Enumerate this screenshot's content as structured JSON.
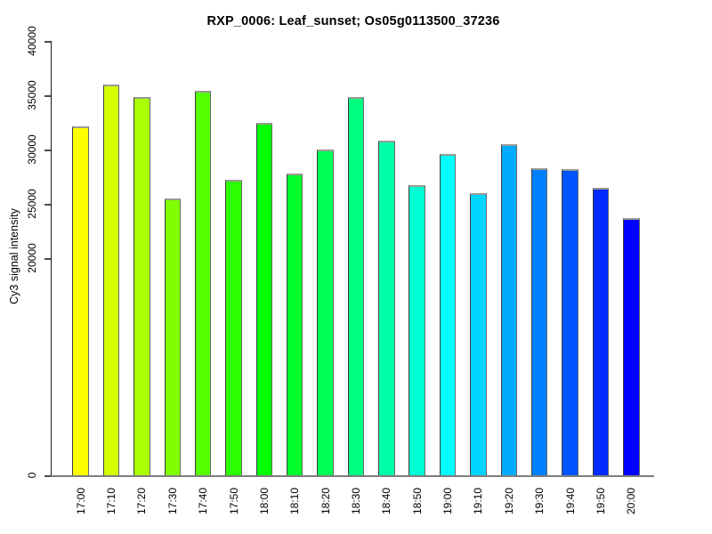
{
  "chart_data": {
    "type": "bar",
    "title": "RXP_0006: Leaf_sunset; Os05g0113500_37236",
    "xlabel": "",
    "ylabel": "Cy3 signal intensity",
    "categories": [
      "17:00",
      "17:10",
      "17:20",
      "17:30",
      "17:40",
      "17:50",
      "18:00",
      "18:10",
      "18:20",
      "18:30",
      "18:40",
      "18:50",
      "19:00",
      "19:10",
      "19:20",
      "19:30",
      "19:40",
      "19:50",
      "20:00"
    ],
    "values": [
      32100,
      36000,
      34800,
      25500,
      35400,
      27200,
      32500,
      27800,
      30000,
      34800,
      30800,
      26700,
      29600,
      26000,
      30500,
      28300,
      28200,
      26500,
      23700
    ],
    "bar_colors": [
      "#FFFF00",
      "#D4FF00",
      "#AAFF00",
      "#80FF00",
      "#55FF00",
      "#2BFF00",
      "#00FF00",
      "#00FF2B",
      "#00FF55",
      "#00FF80",
      "#00FFAA",
      "#00FFD4",
      "#00FFFF",
      "#00D4FF",
      "#00AAFF",
      "#0080FF",
      "#0055FF",
      "#002BFF",
      "#0000FF"
    ],
    "ylim": [
      0,
      40000
    ],
    "y_ticks": [
      0,
      20000,
      25000,
      30000,
      35000,
      40000
    ],
    "y_tick_labels": [
      "0",
      "20000",
      "25000",
      "30000",
      "35000",
      "40000"
    ],
    "grid": false,
    "legend": null,
    "x_tick_rotation": 90,
    "y_tick_rotation": 90
  }
}
